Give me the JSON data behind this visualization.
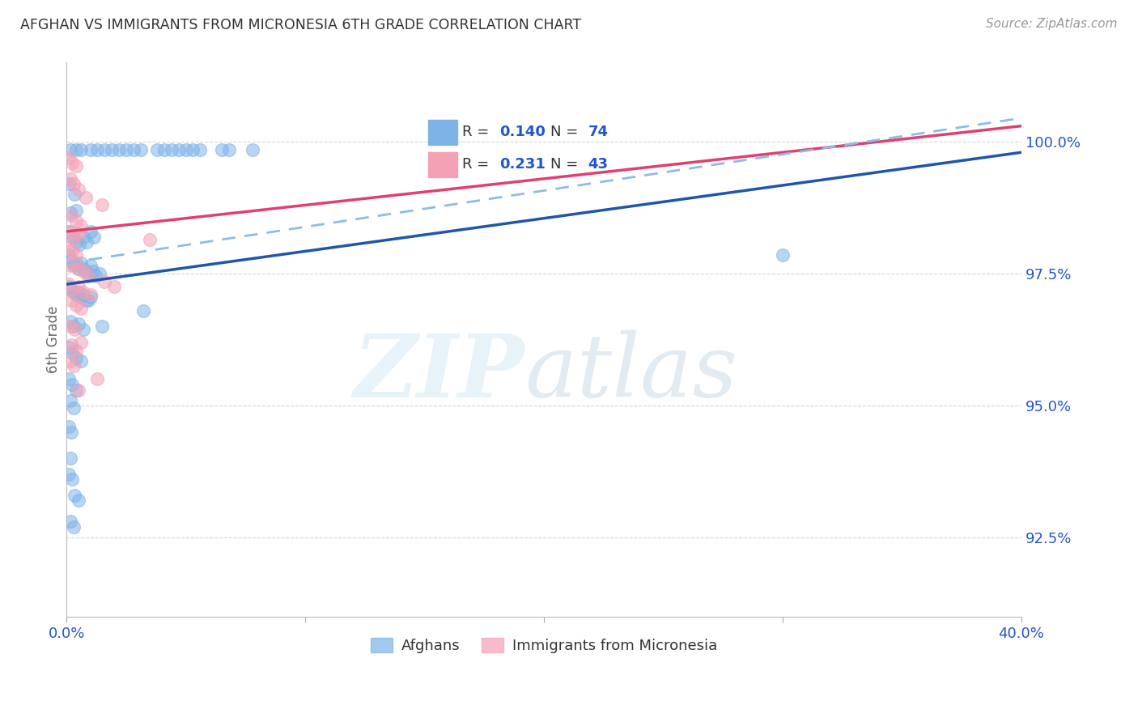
{
  "title": "AFGHAN VS IMMIGRANTS FROM MICRONESIA 6TH GRADE CORRELATION CHART",
  "source": "Source: ZipAtlas.com",
  "ylabel": "6th Grade",
  "xlim": [
    0.0,
    40.0
  ],
  "ylim": [
    91.0,
    101.5
  ],
  "yticks": [
    92.5,
    95.0,
    97.5,
    100.0
  ],
  "ytick_labels": [
    "92.5%",
    "95.0%",
    "97.5%",
    "100.0%"
  ],
  "blue_color": "#7EB3E8",
  "pink_color": "#F4A0B5",
  "blue_line_color": "#2255AA",
  "pink_line_color": "#E04070",
  "dashed_line_color": "#8BBDE8",
  "legend_text_color": "#2255CC",
  "title_color": "#333333",
  "blue_scatter": [
    [
      0.15,
      99.85
    ],
    [
      0.4,
      99.85
    ],
    [
      0.6,
      99.85
    ],
    [
      1.0,
      99.85
    ],
    [
      1.3,
      99.85
    ],
    [
      1.6,
      99.85
    ],
    [
      1.9,
      99.85
    ],
    [
      2.2,
      99.85
    ],
    [
      2.5,
      99.85
    ],
    [
      2.8,
      99.85
    ],
    [
      3.1,
      99.85
    ],
    [
      3.8,
      99.85
    ],
    [
      4.1,
      99.85
    ],
    [
      4.4,
      99.85
    ],
    [
      4.7,
      99.85
    ],
    [
      5.0,
      99.85
    ],
    [
      5.3,
      99.85
    ],
    [
      5.6,
      99.85
    ],
    [
      6.5,
      99.85
    ],
    [
      6.8,
      99.85
    ],
    [
      7.8,
      99.85
    ],
    [
      0.1,
      99.2
    ],
    [
      0.35,
      99.0
    ],
    [
      0.15,
      98.65
    ],
    [
      0.4,
      98.7
    ],
    [
      0.1,
      98.3
    ],
    [
      0.25,
      98.2
    ],
    [
      0.4,
      98.1
    ],
    [
      0.55,
      98.05
    ],
    [
      0.7,
      98.2
    ],
    [
      0.85,
      98.1
    ],
    [
      1.0,
      98.3
    ],
    [
      1.15,
      98.2
    ],
    [
      0.1,
      97.85
    ],
    [
      0.2,
      97.75
    ],
    [
      0.3,
      97.65
    ],
    [
      0.4,
      97.7
    ],
    [
      0.5,
      97.6
    ],
    [
      0.6,
      97.7
    ],
    [
      0.7,
      97.6
    ],
    [
      0.8,
      97.55
    ],
    [
      0.9,
      97.5
    ],
    [
      1.0,
      97.65
    ],
    [
      1.1,
      97.55
    ],
    [
      1.2,
      97.45
    ],
    [
      1.4,
      97.5
    ],
    [
      0.1,
      97.25
    ],
    [
      0.2,
      97.2
    ],
    [
      0.3,
      97.15
    ],
    [
      0.4,
      97.1
    ],
    [
      0.5,
      97.15
    ],
    [
      0.6,
      97.05
    ],
    [
      0.7,
      97.1
    ],
    [
      0.8,
      97.0
    ],
    [
      0.9,
      97.0
    ],
    [
      1.0,
      97.05
    ],
    [
      0.15,
      96.6
    ],
    [
      0.3,
      96.5
    ],
    [
      0.5,
      96.55
    ],
    [
      0.7,
      96.45
    ],
    [
      1.5,
      96.5
    ],
    [
      3.2,
      96.8
    ],
    [
      0.1,
      96.1
    ],
    [
      0.25,
      96.0
    ],
    [
      0.4,
      95.9
    ],
    [
      0.6,
      95.85
    ],
    [
      0.1,
      95.5
    ],
    [
      0.25,
      95.4
    ],
    [
      0.4,
      95.3
    ],
    [
      0.15,
      95.1
    ],
    [
      0.3,
      94.95
    ],
    [
      0.1,
      94.6
    ],
    [
      0.2,
      94.5
    ],
    [
      0.15,
      94.0
    ],
    [
      0.1,
      93.7
    ],
    [
      0.25,
      93.6
    ],
    [
      0.35,
      93.3
    ],
    [
      0.5,
      93.2
    ],
    [
      0.15,
      92.8
    ],
    [
      0.3,
      92.7
    ],
    [
      30.0,
      97.85
    ]
  ],
  "pink_scatter": [
    [
      0.1,
      99.7
    ],
    [
      0.25,
      99.6
    ],
    [
      0.4,
      99.55
    ],
    [
      0.15,
      99.3
    ],
    [
      0.3,
      99.2
    ],
    [
      0.5,
      99.1
    ],
    [
      0.8,
      98.95
    ],
    [
      1.5,
      98.8
    ],
    [
      0.2,
      98.6
    ],
    [
      0.4,
      98.5
    ],
    [
      0.6,
      98.4
    ],
    [
      0.15,
      98.3
    ],
    [
      0.3,
      98.2
    ],
    [
      0.5,
      98.25
    ],
    [
      0.1,
      98.0
    ],
    [
      0.25,
      97.95
    ],
    [
      0.4,
      97.85
    ],
    [
      0.15,
      97.65
    ],
    [
      0.3,
      97.7
    ],
    [
      0.5,
      97.6
    ],
    [
      0.7,
      97.55
    ],
    [
      0.9,
      97.45
    ],
    [
      0.1,
      97.3
    ],
    [
      0.25,
      97.2
    ],
    [
      0.5,
      97.25
    ],
    [
      0.7,
      97.15
    ],
    [
      1.0,
      97.1
    ],
    [
      1.6,
      97.35
    ],
    [
      2.0,
      97.25
    ],
    [
      0.2,
      97.0
    ],
    [
      0.4,
      96.9
    ],
    [
      0.6,
      96.85
    ],
    [
      0.15,
      96.5
    ],
    [
      0.35,
      96.45
    ],
    [
      0.2,
      96.15
    ],
    [
      0.4,
      96.05
    ],
    [
      0.6,
      96.2
    ],
    [
      0.15,
      95.85
    ],
    [
      0.3,
      95.75
    ],
    [
      3.5,
      98.15
    ],
    [
      0.5,
      95.3
    ],
    [
      1.3,
      95.5
    ]
  ],
  "blue_trend": [
    0.0,
    97.3,
    40.0,
    99.8
  ],
  "pink_trend": [
    0.0,
    98.3,
    40.0,
    100.3
  ],
  "dashed_trend": [
    0.0,
    97.7,
    40.0,
    100.45
  ]
}
